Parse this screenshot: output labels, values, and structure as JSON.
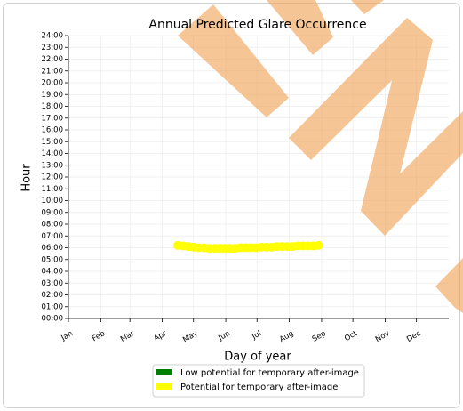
{
  "chart_data": {
    "type": "scatter",
    "title": "Annual Predicted Glare Occurrence",
    "xlabel": "Day of year",
    "ylabel": "Hour",
    "xlim": [
      0,
      365
    ],
    "ylim": [
      0,
      24
    ],
    "grid": true,
    "legend": "below",
    "xticks": [
      {
        "value": 0,
        "label": "Jan"
      },
      {
        "value": 31,
        "label": "Feb"
      },
      {
        "value": 59,
        "label": "Mar"
      },
      {
        "value": 90,
        "label": "Apr"
      },
      {
        "value": 120,
        "label": "May"
      },
      {
        "value": 151,
        "label": "Jun"
      },
      {
        "value": 181,
        "label": "Jul"
      },
      {
        "value": 212,
        "label": "Aug"
      },
      {
        "value": 243,
        "label": "Sep"
      },
      {
        "value": 273,
        "label": "Oct"
      },
      {
        "value": 304,
        "label": "Nov"
      },
      {
        "value": 334,
        "label": "Dec"
      }
    ],
    "yticks": [
      {
        "value": 0,
        "label": "00:00"
      },
      {
        "value": 1,
        "label": "01:00"
      },
      {
        "value": 2,
        "label": "02:00"
      },
      {
        "value": 3,
        "label": "03:00"
      },
      {
        "value": 4,
        "label": "04:00"
      },
      {
        "value": 5,
        "label": "05:00"
      },
      {
        "value": 6,
        "label": "06:00"
      },
      {
        "value": 7,
        "label": "07:00"
      },
      {
        "value": 8,
        "label": "08:00"
      },
      {
        "value": 9,
        "label": "09:00"
      },
      {
        "value": 10,
        "label": "10:00"
      },
      {
        "value": 11,
        "label": "11:00"
      },
      {
        "value": 12,
        "label": "12:00"
      },
      {
        "value": 13,
        "label": "13:00"
      },
      {
        "value": 14,
        "label": "14:00"
      },
      {
        "value": 15,
        "label": "15:00"
      },
      {
        "value": 16,
        "label": "16:00"
      },
      {
        "value": 17,
        "label": "17:00"
      },
      {
        "value": 18,
        "label": "18:00"
      },
      {
        "value": 19,
        "label": "19:00"
      },
      {
        "value": 20,
        "label": "20:00"
      },
      {
        "value": 21,
        "label": "21:00"
      },
      {
        "value": 22,
        "label": "22:00"
      },
      {
        "value": 23,
        "label": "23:00"
      },
      {
        "value": 24,
        "label": "24:00"
      }
    ],
    "series": [
      {
        "name": "Low potential for temporary after-image",
        "color": "#008000",
        "x": [],
        "values": []
      },
      {
        "name": "Potential for temporary after-image",
        "color": "#ffff00",
        "x": [
          105,
          110,
          115,
          120,
          125,
          130,
          135,
          140,
          145,
          150,
          155,
          160,
          165,
          170,
          175,
          180,
          185,
          190,
          195,
          200,
          205,
          210,
          215,
          220,
          225,
          230,
          235,
          240
        ],
        "values": [
          6.2,
          6.15,
          6.1,
          6.05,
          6.0,
          6.0,
          5.95,
          5.95,
          5.95,
          5.95,
          5.95,
          5.95,
          6.0,
          6.0,
          6.0,
          6.0,
          6.05,
          6.05,
          6.05,
          6.1,
          6.1,
          6.1,
          6.1,
          6.15,
          6.15,
          6.15,
          6.15,
          6.2
        ]
      }
    ]
  }
}
